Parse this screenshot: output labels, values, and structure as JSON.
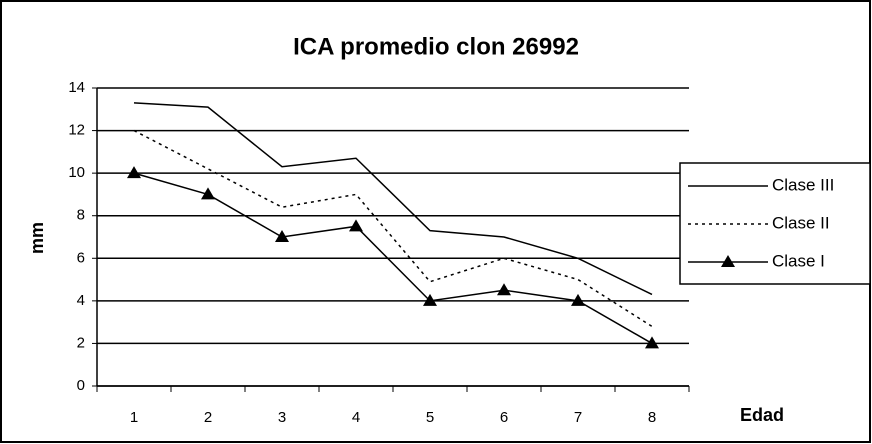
{
  "chart_data": {
    "type": "line",
    "title": "ICA promedio clon 26992",
    "x_label": "Edad",
    "y_label": "mm",
    "categories": [
      "1",
      "2",
      "3",
      "4",
      "5",
      "6",
      "7",
      "8"
    ],
    "series": [
      {
        "name": "Clase III",
        "color": "#000000",
        "style": "solid",
        "marker": "none",
        "values": [
          13.3,
          13.1,
          10.3,
          10.7,
          7.3,
          7.0,
          6.0,
          4.3
        ]
      },
      {
        "name": "Clase II",
        "color": "#000000",
        "style": "dotted",
        "marker": "none",
        "values": [
          12.0,
          10.2,
          8.4,
          9.0,
          4.9,
          6.0,
          5.0,
          2.8
        ]
      },
      {
        "name": "Clase I",
        "color": "#000000",
        "style": "solid",
        "marker": "triangle",
        "values": [
          10.0,
          9.0,
          7.0,
          7.5,
          4.0,
          4.5,
          4.0,
          2.0
        ]
      }
    ],
    "ylim": [
      0,
      14
    ],
    "yticks": [
      0,
      2,
      4,
      6,
      8,
      10,
      12,
      14
    ],
    "grid": true,
    "legend": "right"
  }
}
